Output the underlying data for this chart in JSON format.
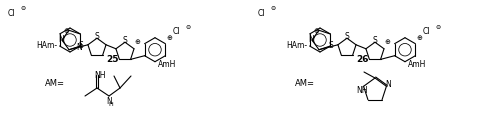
{
  "bg_color": "#ffffff",
  "fig_width": 5.0,
  "fig_height": 1.22,
  "dpi": 100,
  "lw": 0.8,
  "fs_label": 5.5,
  "fs_num": 6.5,
  "fs_charge": 5.0,
  "c25_label": "25",
  "c26_label": "26",
  "am_text": "AM=",
  "cl_text": "Cl",
  "n_text": "N",
  "s_text": "S",
  "ham_text": "HAm",
  "amh_text": "AmH"
}
